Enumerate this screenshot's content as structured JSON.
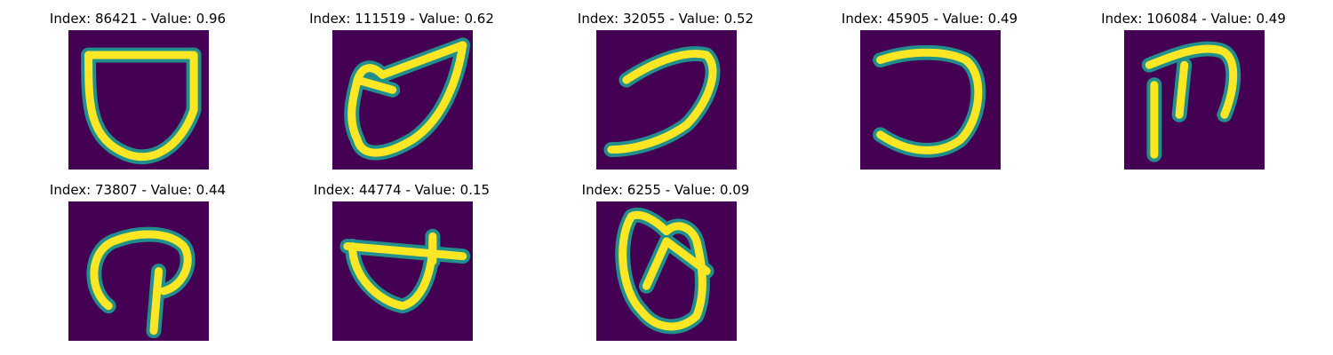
{
  "panels": [
    {
      "index": "86421",
      "value": "0.96",
      "title": "Index: 86421 - Value: 0.96",
      "image_description": "handwritten U-shaped glyph with a flat top bar"
    },
    {
      "index": "111519",
      "value": "0.62",
      "title": "Index: 111519 - Value: 0.62",
      "image_description": "handwritten leaf-like loop glyph"
    },
    {
      "index": "32055",
      "value": "0.52",
      "title": "Index: 32055 - Value: 0.52",
      "image_description": "handwritten reversed C / hook glyph"
    },
    {
      "index": "45905",
      "value": "0.49",
      "title": "Index: 45905 - Value: 0.49",
      "image_description": "handwritten reversed C glyph"
    },
    {
      "index": "106084",
      "value": "0.49",
      "title": "Index: 106084 - Value: 0.49",
      "image_description": "handwritten three-stroke glyph resembling m"
    },
    {
      "index": "73807",
      "value": "0.44",
      "title": "Index: 73807 - Value: 0.44",
      "image_description": "handwritten loop with vertical stem"
    },
    {
      "index": "44774",
      "value": "0.15",
      "title": "Index: 44774 - Value: 0.15",
      "image_description": "handwritten bowl glyph with crossing bar"
    },
    {
      "index": "6255",
      "value": "0.09",
      "title": "Index: 6255 - Value: 0.09",
      "image_description": "handwritten double loop glyph"
    }
  ],
  "colors": {
    "background": "#440154",
    "stroke_mid": "#21908d",
    "stroke_high": "#fde725",
    "stroke_edge": "#5ec962"
  }
}
